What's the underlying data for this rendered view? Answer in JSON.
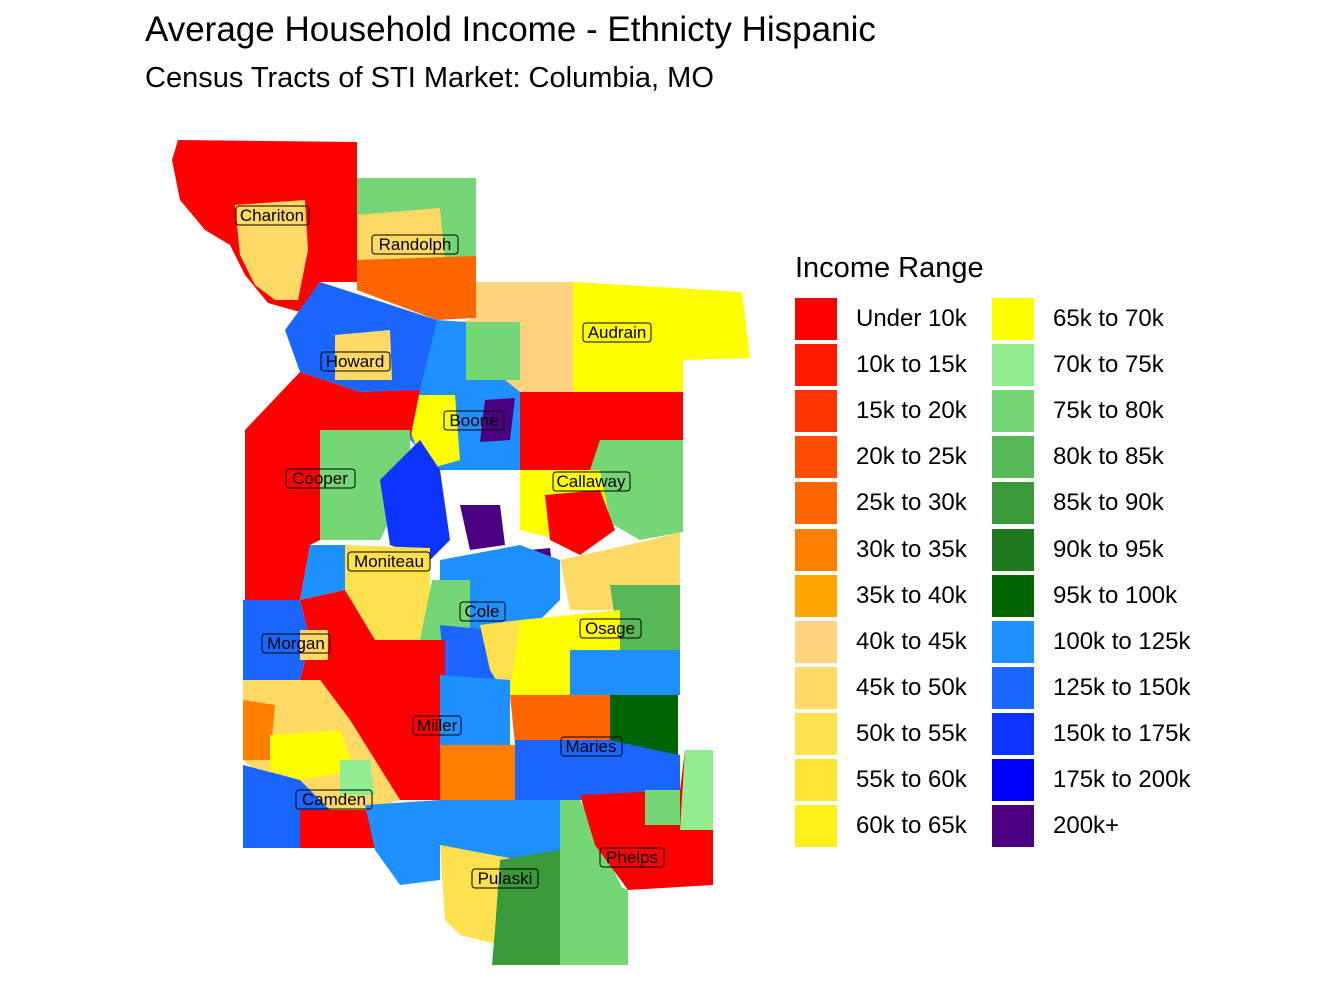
{
  "title": "Average Household Income - Ethnicty Hispanic",
  "subtitle": "Census Tracts of STI Market: Columbia, MO",
  "legend": {
    "title": "Income Range",
    "items": [
      {
        "label": "Under 10k",
        "color": "#ff0000"
      },
      {
        "label": "10k to 15k",
        "color": "#ff1a00"
      },
      {
        "label": "15k to 20k",
        "color": "#ff3300"
      },
      {
        "label": "20k to 25k",
        "color": "#ff4d00"
      },
      {
        "label": "25k to 30k",
        "color": "#ff6600"
      },
      {
        "label": "30k to 35k",
        "color": "#ff8000"
      },
      {
        "label": "35k to 40k",
        "color": "#ffa500"
      },
      {
        "label": "40k to 45k",
        "color": "#ffd27f"
      },
      {
        "label": "45k to 50k",
        "color": "#ffd966"
      },
      {
        "label": "50k to 55k",
        "color": "#ffe14d"
      },
      {
        "label": "55k to 60k",
        "color": "#ffe733"
      },
      {
        "label": "60k to 65k",
        "color": "#fff01a"
      },
      {
        "label": "65k to 70k",
        "color": "#ffff00"
      },
      {
        "label": "70k to 75k",
        "color": "#90ee90"
      },
      {
        "label": "75k to 80k",
        "color": "#74d674"
      },
      {
        "label": "80k to 85k",
        "color": "#57b857"
      },
      {
        "label": "85k to 90k",
        "color": "#3a9a3a"
      },
      {
        "label": "90k to 95k",
        "color": "#1e7a1e"
      },
      {
        "label": "95k to 100k",
        "color": "#006400"
      },
      {
        "label": "100k to 125k",
        "color": "#1e90ff"
      },
      {
        "label": "125k to 150k",
        "color": "#1a66ff"
      },
      {
        "label": "150k to 175k",
        "color": "#0d33ff"
      },
      {
        "label": "175k to 200k",
        "color": "#0000ff"
      },
      {
        "label": "200k+",
        "color": "#4b0082"
      }
    ]
  },
  "counties": [
    {
      "name": "Chariton"
    },
    {
      "name": "Randolph"
    },
    {
      "name": "Audrain"
    },
    {
      "name": "Howard"
    },
    {
      "name": "Boone"
    },
    {
      "name": "Cooper"
    },
    {
      "name": "Callaway"
    },
    {
      "name": "Moniteau"
    },
    {
      "name": "Cole"
    },
    {
      "name": "Osage"
    },
    {
      "name": "Morgan"
    },
    {
      "name": "Miller"
    },
    {
      "name": "Maries"
    },
    {
      "name": "Camden"
    },
    {
      "name": "Phelps"
    },
    {
      "name": "Pulaski"
    }
  ]
}
